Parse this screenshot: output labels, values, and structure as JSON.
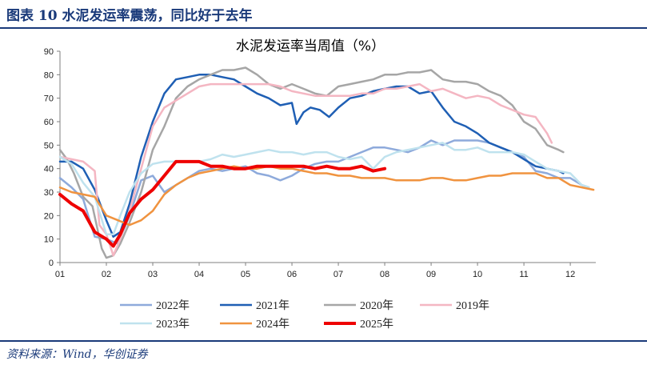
{
  "header": {
    "title": "图表 10    水泥发运率震荡，同比好于去年"
  },
  "source": "资料来源：Wind，华创证券",
  "chart_data": {
    "type": "line",
    "title": "水泥发运率当周值（%）",
    "xlabel": "",
    "ylabel": "",
    "xlim": [
      1,
      12.55
    ],
    "ylim": [
      0,
      90
    ],
    "yticks": [
      0,
      10,
      20,
      30,
      40,
      50,
      60,
      70,
      80,
      90
    ],
    "xtick_labels": [
      "01",
      "02",
      "03",
      "04",
      "05",
      "06",
      "07",
      "08",
      "09",
      "10",
      "11",
      "12"
    ],
    "grid": false,
    "legend_position": "bottom",
    "series": [
      {
        "name": "2022年",
        "color": "#8eaadb",
        "width": 2.5,
        "x": [
          1.0,
          1.25,
          1.5,
          1.75,
          2.0,
          2.25,
          2.5,
          2.75,
          3.0,
          3.25,
          3.5,
          3.75,
          4.0,
          4.25,
          4.5,
          4.75,
          5.0,
          5.25,
          5.5,
          5.75,
          6.0,
          6.25,
          6.5,
          6.75,
          7.0,
          7.25,
          7.5,
          7.75,
          8.0,
          8.25,
          8.5,
          8.75,
          9.0,
          9.25,
          9.5,
          9.75,
          10.0,
          10.25,
          10.5,
          10.75,
          11.0,
          11.25,
          11.5,
          11.75,
          12.0,
          12.25,
          12.4
        ],
        "y": [
          36,
          32,
          27,
          11,
          10,
          8,
          20,
          35,
          37,
          30,
          33,
          36,
          39,
          40,
          39,
          40,
          41,
          38,
          37,
          35,
          37,
          40,
          42,
          43,
          43,
          45,
          47,
          49,
          49,
          48,
          47,
          49,
          52,
          50,
          52,
          52,
          52,
          51,
          49,
          47,
          45,
          39,
          38,
          36,
          36,
          33,
          32
        ]
      },
      {
        "name": "2021年",
        "color": "#1f5fb4",
        "width": 2.5,
        "x": [
          1.0,
          1.25,
          1.5,
          1.75,
          2.0,
          2.15,
          2.3,
          2.5,
          2.75,
          3.0,
          3.25,
          3.5,
          3.75,
          4.0,
          4.25,
          4.5,
          4.75,
          5.0,
          5.25,
          5.5,
          5.75,
          6.0,
          6.1,
          6.25,
          6.4,
          6.6,
          6.8,
          7.0,
          7.25,
          7.5,
          7.75,
          8.0,
          8.25,
          8.5,
          8.75,
          9.0,
          9.25,
          9.5,
          9.75,
          10.0,
          10.25,
          10.5,
          10.75,
          11.0,
          11.25,
          11.5,
          11.75,
          11.85
        ],
        "y": [
          43,
          43,
          40,
          31,
          18,
          11,
          13,
          25,
          45,
          60,
          72,
          78,
          79,
          80,
          80,
          79,
          78,
          75,
          72,
          70,
          67,
          68,
          59,
          64,
          66,
          65,
          62,
          66,
          70,
          71,
          73,
          74,
          75,
          75,
          72,
          73,
          66,
          60,
          58,
          55,
          51,
          49,
          47,
          44,
          41,
          40,
          39,
          38
        ]
      },
      {
        "name": "2020年",
        "color": "#a6a6a6",
        "width": 2.5,
        "x": [
          1.0,
          1.15,
          1.3,
          1.5,
          1.7,
          1.9,
          2.0,
          2.15,
          2.3,
          2.5,
          2.75,
          3.0,
          3.25,
          3.5,
          3.75,
          4.0,
          4.25,
          4.5,
          4.75,
          5.0,
          5.25,
          5.5,
          5.75,
          6.0,
          6.25,
          6.5,
          6.75,
          7.0,
          7.25,
          7.5,
          7.75,
          8.0,
          8.25,
          8.5,
          8.75,
          9.0,
          9.25,
          9.5,
          9.75,
          10.0,
          10.25,
          10.5,
          10.75,
          11.0,
          11.25,
          11.5,
          11.75,
          11.85
        ],
        "y": [
          48,
          44,
          38,
          28,
          24,
          6,
          2,
          3,
          8,
          17,
          30,
          48,
          58,
          70,
          75,
          78,
          80,
          82,
          82,
          83,
          80,
          76,
          74,
          76,
          74,
          72,
          71,
          75,
          76,
          77,
          78,
          80,
          80,
          81,
          81,
          82,
          78,
          77,
          77,
          76,
          73,
          71,
          67,
          60,
          57,
          50,
          48,
          47
        ]
      },
      {
        "name": "2019年",
        "color": "#f4b6c2",
        "width": 2.5,
        "x": [
          1.0,
          1.25,
          1.5,
          1.75,
          1.85,
          2.0,
          2.15,
          2.3,
          2.5,
          2.75,
          3.0,
          3.25,
          3.5,
          3.75,
          4.0,
          4.25,
          4.5,
          4.75,
          5.0,
          5.25,
          5.5,
          5.75,
          6.0,
          6.25,
          6.5,
          6.75,
          7.0,
          7.25,
          7.5,
          7.75,
          8.0,
          8.25,
          8.5,
          8.75,
          9.0,
          9.25,
          9.5,
          9.75,
          10.0,
          10.25,
          10.5,
          10.75,
          11.0,
          11.25,
          11.5,
          11.6
        ],
        "y": [
          45,
          44,
          43,
          39,
          16,
          12,
          3,
          10,
          22,
          40,
          58,
          66,
          69,
          72,
          75,
          76,
          76,
          76,
          76,
          76,
          76,
          75,
          73,
          72,
          71,
          71,
          71,
          71,
          72,
          72,
          74,
          74,
          75,
          76,
          73,
          74,
          72,
          70,
          71,
          70,
          67,
          65,
          63,
          62,
          55,
          51
        ]
      },
      {
        "name": "2023年",
        "color": "#bfe2ee",
        "width": 2.5,
        "x": [
          1.0,
          1.25,
          1.5,
          1.75,
          2.0,
          2.15,
          2.3,
          2.5,
          2.75,
          3.0,
          3.25,
          3.5,
          3.75,
          4.0,
          4.25,
          4.5,
          4.75,
          5.0,
          5.25,
          5.5,
          5.75,
          6.0,
          6.25,
          6.5,
          6.75,
          7.0,
          7.25,
          7.5,
          7.75,
          8.0,
          8.25,
          8.5,
          8.75,
          9.0,
          9.25,
          9.5,
          9.75,
          10.0,
          10.25,
          10.5,
          10.75,
          11.0,
          11.25,
          11.5,
          11.75,
          12.0,
          12.25,
          12.4
        ],
        "y": [
          45,
          42,
          34,
          28,
          12,
          12,
          20,
          30,
          38,
          42,
          43,
          43,
          43,
          43,
          44,
          46,
          45,
          46,
          47,
          48,
          47,
          47,
          46,
          47,
          47,
          45,
          44,
          45,
          40,
          45,
          47,
          48,
          49,
          50,
          51,
          48,
          48,
          49,
          47,
          47,
          47,
          46,
          43,
          40,
          39,
          38,
          33,
          32
        ]
      },
      {
        "name": "2024年",
        "color": "#f0933f",
        "width": 2.5,
        "x": [
          1.0,
          1.25,
          1.5,
          1.75,
          2.0,
          2.25,
          2.5,
          2.75,
          3.0,
          3.25,
          3.5,
          3.75,
          4.0,
          4.25,
          4.5,
          4.75,
          5.0,
          5.25,
          5.5,
          5.75,
          6.0,
          6.25,
          6.5,
          6.75,
          7.0,
          7.25,
          7.5,
          7.75,
          8.0,
          8.25,
          8.5,
          8.75,
          9.0,
          9.25,
          9.5,
          9.75,
          10.0,
          10.25,
          10.5,
          10.75,
          11.0,
          11.25,
          11.5,
          11.75,
          12.0,
          12.25,
          12.5
        ],
        "y": [
          32,
          30,
          29,
          28,
          20,
          18,
          16,
          18,
          22,
          29,
          33,
          36,
          38,
          39,
          40,
          41,
          40,
          40,
          41,
          40,
          40,
          39,
          38,
          38,
          37,
          37,
          36,
          36,
          36,
          35,
          35,
          35,
          36,
          36,
          35,
          35,
          36,
          37,
          37,
          38,
          38,
          38,
          36,
          36,
          33,
          32,
          31
        ]
      },
      {
        "name": "2025年",
        "color": "#ee0000",
        "width": 4,
        "x": [
          1.0,
          1.25,
          1.5,
          1.75,
          2.0,
          2.15,
          2.3,
          2.5,
          2.75,
          3.0,
          3.25,
          3.5,
          3.75,
          4.0,
          4.25,
          4.5,
          4.75,
          5.0,
          5.25,
          5.5,
          5.75,
          6.0,
          6.25,
          6.5,
          6.75,
          7.0,
          7.25,
          7.5,
          7.75,
          8.0
        ],
        "y": [
          29,
          25,
          22,
          13,
          10,
          7,
          12,
          21,
          27,
          31,
          37,
          43,
          43,
          43,
          41,
          41,
          40,
          40,
          41,
          41,
          41,
          41,
          41,
          40,
          41,
          40,
          40,
          41,
          39,
          40
        ]
      }
    ]
  }
}
